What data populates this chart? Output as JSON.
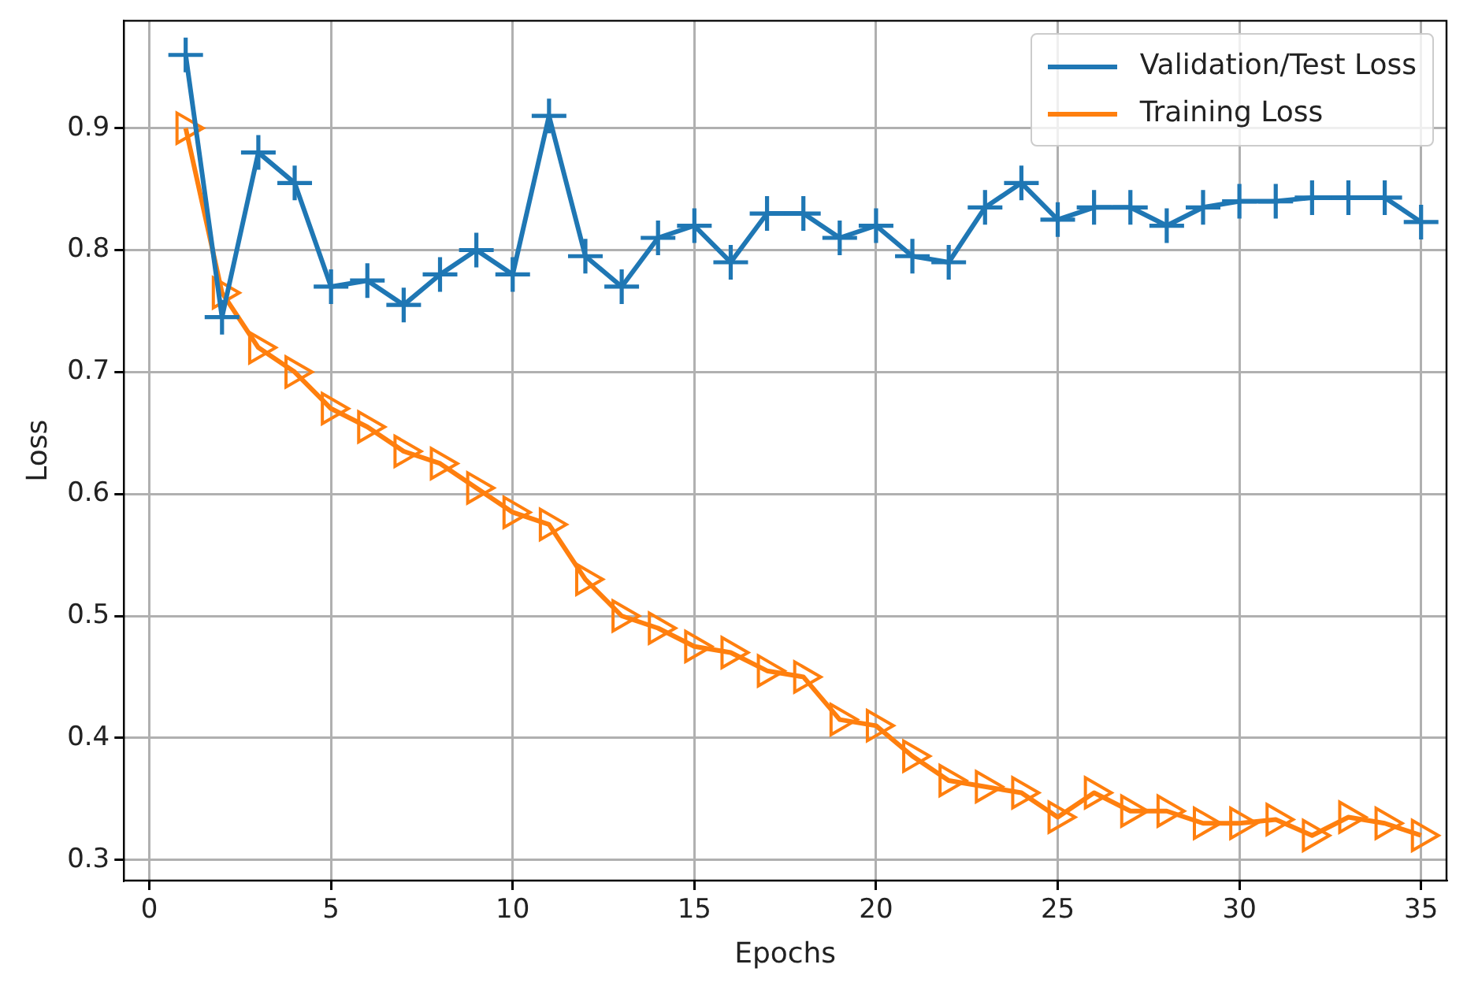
{
  "chart_data": {
    "type": "line",
    "xlabel": "Epochs",
    "ylabel": "Loss",
    "x": [
      1,
      2,
      3,
      4,
      5,
      6,
      7,
      8,
      9,
      10,
      11,
      12,
      13,
      14,
      15,
      16,
      17,
      18,
      19,
      20,
      21,
      22,
      23,
      24,
      25,
      26,
      27,
      28,
      29,
      30,
      31,
      32,
      33,
      34,
      35
    ],
    "series": [
      {
        "name": "Validation/Test Loss",
        "color": "#1f77b4",
        "marker": "cross",
        "values": [
          0.96,
          0.745,
          0.88,
          0.855,
          0.77,
          0.775,
          0.755,
          0.78,
          0.8,
          0.78,
          0.91,
          0.795,
          0.77,
          0.81,
          0.82,
          0.79,
          0.83,
          0.83,
          0.81,
          0.82,
          0.795,
          0.79,
          0.835,
          0.855,
          0.825,
          0.835,
          0.835,
          0.82,
          0.835,
          0.84,
          0.84,
          0.843,
          0.843,
          0.843,
          0.823
        ]
      },
      {
        "name": "Training Loss",
        "color": "#ff7f0e",
        "marker": "triangle",
        "values": [
          0.9,
          0.765,
          0.72,
          0.7,
          0.67,
          0.655,
          0.635,
          0.625,
          0.605,
          0.585,
          0.575,
          0.53,
          0.5,
          0.49,
          0.475,
          0.47,
          0.455,
          0.45,
          0.415,
          0.41,
          0.385,
          0.365,
          0.36,
          0.355,
          0.335,
          0.355,
          0.34,
          0.34,
          0.33,
          0.33,
          0.333,
          0.32,
          0.335,
          0.33,
          0.32
        ]
      }
    ],
    "xlim": [
      -0.7,
      35.7
    ],
    "xticks": [
      0,
      5,
      10,
      15,
      20,
      25,
      30,
      35
    ],
    "ylim": [
      0.283,
      0.988
    ],
    "yticks": [
      0.3,
      0.4,
      0.5,
      0.6,
      0.7,
      0.8,
      0.9
    ],
    "grid": true,
    "legend": "top right",
    "line_style": "solid"
  }
}
